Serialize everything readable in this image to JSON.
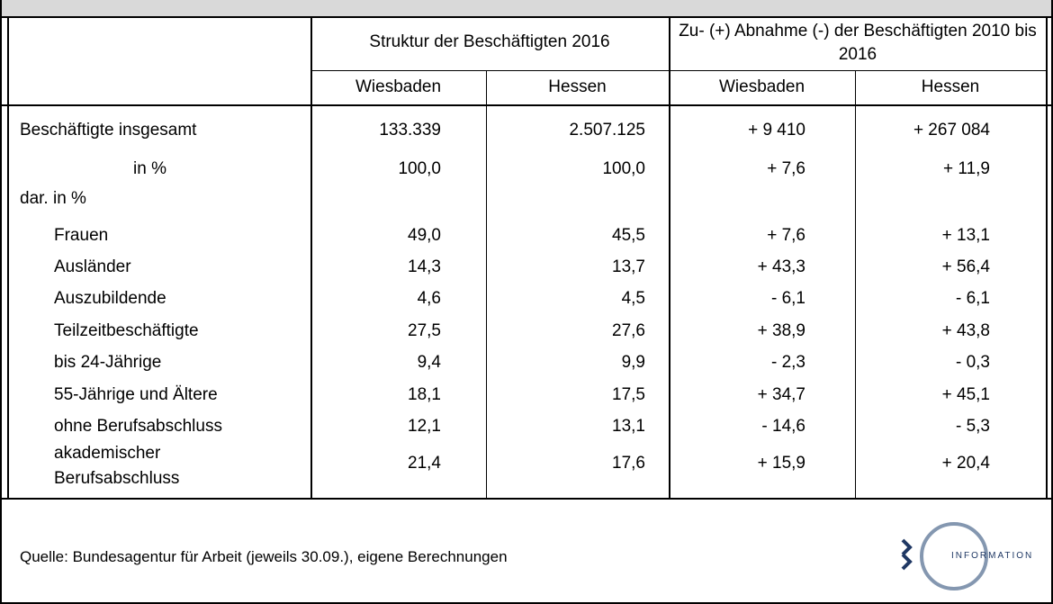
{
  "table": {
    "groups": [
      "Struktur der Beschäftigten 2016",
      "Zu- (+) Abnahme (-) der Beschäftigten 2010 bis 2016"
    ],
    "subheaders": [
      "Wiesbaden",
      "Hessen",
      "Wiesbaden",
      "Hessen"
    ],
    "rows": [
      {
        "label": "Beschäftigte  insgesamt",
        "cells": [
          "133.339",
          "2.507.125",
          "+ 9 410",
          "+ 267 084"
        ]
      },
      {
        "label": "in %",
        "cells": [
          "100,0",
          "100,0",
          "+ 7,6",
          "+ 11,9"
        ]
      }
    ],
    "group": {
      "label": "dar. in %",
      "rows": [
        {
          "label": "Frauen",
          "cells": [
            "49,0",
            "45,5",
            "+ 7,6",
            "+ 13,1"
          ]
        },
        {
          "label": "Ausländer",
          "cells": [
            "14,3",
            "13,7",
            "+ 43,3",
            "+ 56,4"
          ]
        },
        {
          "label": "Auszubildende",
          "cells": [
            "4,6",
            "4,5",
            "- 6,1",
            "- 6,1"
          ]
        },
        {
          "label": "Teilzeitbeschäftigte",
          "cells": [
            "27,5",
            "27,6",
            "+ 38,9",
            "+ 43,8"
          ]
        },
        {
          "label": "bis 24-Jährige",
          "cells": [
            "9,4",
            "9,9",
            "- 2,3",
            "- 0,3"
          ]
        },
        {
          "label": "55-Jährige und Ältere",
          "cells": [
            "18,1",
            "17,5",
            "+ 34,7",
            "+ 45,1"
          ]
        },
        {
          "label": "ohne Berufsabschluss",
          "cells": [
            "12,1",
            "13,1",
            "- 14,6",
            "- 5,3"
          ]
        },
        {
          "label": "akademischer Berufsabschluss",
          "cells": [
            "21,4",
            "17,6",
            "+ 15,9",
            "+ 20,4"
          ]
        }
      ]
    }
  },
  "footer": {
    "source": "Quelle:  Bundesagentur für Arbeit (jeweils 30.09.), eigene Berechnungen",
    "logo_text": "INFORMATION"
  }
}
